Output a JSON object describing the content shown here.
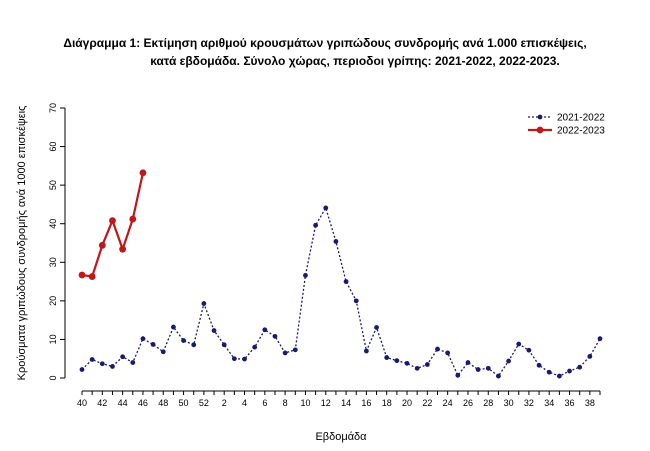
{
  "chart_data": {
    "type": "line",
    "title_line1": "Διάγραμμα 1: Εκτίμηση αριθμού κρουσμάτων γριπώδους συνδρομής ανά 1.000 επισκέψεις,",
    "title_line2": "κατά εβδομάδα. Σύνολο χώρας, περιοδοι γρίπης:  2021-2022, 2022-2023.",
    "xlabel": "Εβδομάδα",
    "ylabel": "Κρούσματα γριπώδους συνδρομής ανά 1000 επισκέψεις",
    "ylim": [
      0,
      70
    ],
    "yticks": [
      0,
      10,
      20,
      30,
      40,
      50,
      60,
      70
    ],
    "weeks": [
      40,
      41,
      42,
      43,
      44,
      45,
      46,
      47,
      48,
      49,
      50,
      51,
      52,
      1,
      2,
      3,
      4,
      5,
      6,
      7,
      8,
      9,
      10,
      11,
      12,
      13,
      14,
      15,
      16,
      17,
      18,
      19,
      20,
      21,
      22,
      23,
      24,
      25,
      26,
      27,
      28,
      29,
      30,
      31,
      32,
      33,
      34,
      35,
      36,
      37,
      38,
      39
    ],
    "xtick_labels": [
      "40",
      "42",
      "44",
      "46",
      "48",
      "50",
      "52",
      "2",
      "4",
      "6",
      "8",
      "10",
      "12",
      "14",
      "16",
      "18",
      "20",
      "22",
      "24",
      "26",
      "28",
      "30",
      "32",
      "34",
      "36",
      "38"
    ],
    "legend_position": "top-right",
    "grid": false,
    "series": [
      {
        "name": "2021-2022",
        "color": "#1a1a6e",
        "style": "dotted",
        "values": [
          2.2,
          4.8,
          3.7,
          3.0,
          5.5,
          4.0,
          10.2,
          8.7,
          6.8,
          13.2,
          9.7,
          8.6,
          19.3,
          12.3,
          8.6,
          5.0,
          4.9,
          8.0,
          12.5,
          10.8,
          6.5,
          7.3,
          26.6,
          39.6,
          44.1,
          35.4,
          25.0,
          20.0,
          7.0,
          13.1,
          5.3,
          4.5,
          3.8,
          2.5,
          3.5,
          7.5,
          6.5,
          0.7,
          4.0,
          2.2,
          2.5,
          0.5,
          4.4,
          8.8,
          7.2,
          3.3,
          1.5,
          0.5,
          1.8,
          2.8,
          5.6,
          10.2
        ]
      },
      {
        "name": "2022-2023",
        "color": "#c0171b",
        "style": "solid",
        "values": [
          26.7,
          26.3,
          34.4,
          40.8,
          33.4,
          41.2,
          53.2
        ]
      }
    ]
  }
}
